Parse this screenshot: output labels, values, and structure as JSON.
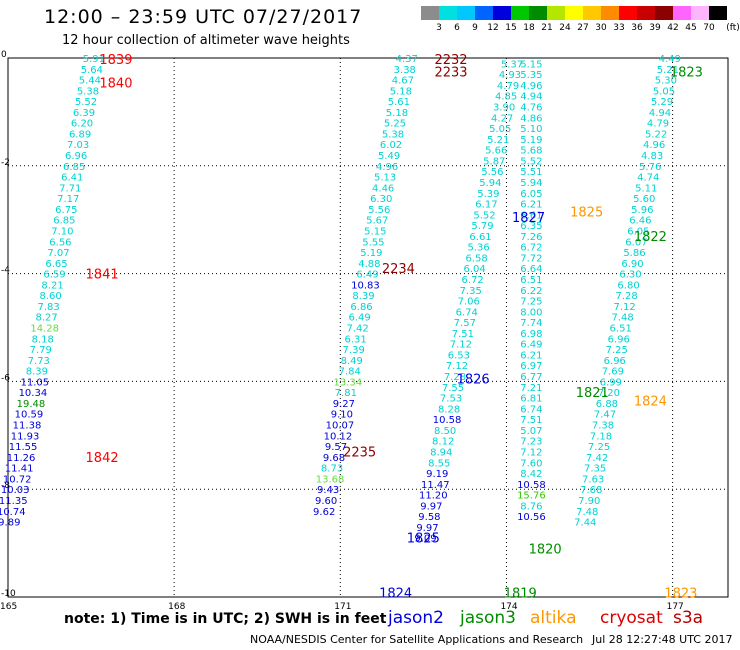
{
  "title": "12:00 – 23:59 UTC 07/27/2017",
  "subtitle": "12 hour collection of altimeter wave heights",
  "colorbar": {
    "unit": "(ft)",
    "labels": [
      "3",
      "6",
      "9",
      "12",
      "15",
      "18",
      "21",
      "24",
      "27",
      "30",
      "33",
      "36",
      "39",
      "42",
      "45",
      "70"
    ],
    "colors": [
      "#8c8c8c",
      "#00e0e0",
      "#00c8ff",
      "#0064ff",
      "#0000dc",
      "#00c800",
      "#008c00",
      "#b4e600",
      "#ffff00",
      "#ffc800",
      "#ff8c00",
      "#ff0000",
      "#c80000",
      "#8c0000",
      "#ff64ff",
      "#ffb4ff",
      "#000000"
    ]
  },
  "note": "note:  1) Time is in UTC;  2) SWH is in feet",
  "legend": [
    {
      "label": "jason2",
      "color": "#0000dc"
    },
    {
      "label": "jason3",
      "color": "#008c00"
    },
    {
      "label": "altika",
      "color": "#ff9600"
    },
    {
      "label": "cryosat",
      "color": "#dc0000"
    },
    {
      "label": "s3a",
      "color": "#b40000"
    }
  ],
  "footer": "NOAA/NESDIS Center for Satellite Applications and Research",
  "timestamp": "Jul 28 12:27:48 UTC 2017",
  "chart_data": {
    "type": "scatter",
    "xlim": [
      165,
      178
    ],
    "ylim": [
      -10,
      0
    ],
    "x_ticks": [
      "165",
      "168",
      "171",
      "174",
      "177"
    ],
    "y_ticks": [
      "0",
      "-2",
      "-4",
      "-6",
      "-8",
      "-10"
    ],
    "grid": true,
    "time_labels": [
      {
        "text": "1839",
        "color": "#ff0000",
        "x": 166.65,
        "y": -0.02
      },
      {
        "text": "1840",
        "color": "#ff0000",
        "x": 166.65,
        "y": -0.45
      },
      {
        "text": "1841",
        "color": "#ff0000",
        "x": 166.4,
        "y": -4.0
      },
      {
        "text": "1842",
        "color": "#ff0000",
        "x": 166.4,
        "y": -7.4
      },
      {
        "text": "2232",
        "color": "#8c0000",
        "x": 172.7,
        "y": -0.02
      },
      {
        "text": "2233",
        "color": "#8c0000",
        "x": 172.7,
        "y": -0.25
      },
      {
        "text": "2234",
        "color": "#8c0000",
        "x": 171.75,
        "y": -3.9
      },
      {
        "text": "2235",
        "color": "#8c0000",
        "x": 171.05,
        "y": -7.3
      },
      {
        "text": "1823",
        "color": "#008c00",
        "x": 176.95,
        "y": -0.25
      },
      {
        "text": "1822",
        "color": "#008c00",
        "x": 176.3,
        "y": -3.3
      },
      {
        "text": "1821",
        "color": "#008c00",
        "x": 175.25,
        "y": -6.2
      },
      {
        "text": "1820",
        "color": "#008c00",
        "x": 174.4,
        "y": -9.1
      },
      {
        "text": "1819",
        "color": "#008c00",
        "x": 173.95,
        "y": -9.92
      },
      {
        "text": "1827",
        "color": "#0000dc",
        "x": 174.1,
        "y": -2.95
      },
      {
        "text": "1826",
        "color": "#0000dc",
        "x": 173.1,
        "y": -5.95
      },
      {
        "text": "1825",
        "color": "#0000dc",
        "x": 172.2,
        "y": -8.9
      },
      {
        "text": "1824",
        "color": "#0000dc",
        "x": 171.7,
        "y": -9.92
      },
      {
        "text": "1825",
        "color": "#ff9600",
        "x": 175.15,
        "y": -2.85
      },
      {
        "text": "1824",
        "color": "#ff9600",
        "x": 176.3,
        "y": -6.35
      },
      {
        "text": "1823",
        "color": "#ff9600",
        "x": 176.85,
        "y": -9.92
      }
    ],
    "series": [
      {
        "name": "cryosat pass 1839-1842",
        "x0": 166.55,
        "y0": 0.0,
        "dx": -0.0355,
        "dy": -0.2,
        "values": [
          "5.91",
          "5.64",
          "5.44",
          "5.38",
          "5.52",
          "6.39",
          "6.20",
          "6.89",
          "7.03",
          "6.96",
          "6.85",
          "6.41",
          "7.71",
          "7.17",
          "6.75",
          "6.85",
          "7.10",
          "6.56",
          "7.07",
          "6.65",
          "6.59",
          "8.21",
          "8.60",
          "7.83",
          "8.27",
          "14.28",
          "8.18",
          "7.79",
          "7.73",
          "8.39",
          "11.05",
          "10.34",
          "19.48",
          "10.59",
          "11.38",
          "11.93",
          "11.55",
          "11.26",
          "11.41",
          "10.72",
          "10.03",
          "11.35",
          "10.74",
          "9.89"
        ]
      },
      {
        "name": "s3a pass 2232-2235",
        "x0": 172.2,
        "y0": 0.0,
        "dx": -0.0355,
        "dy": -0.2,
        "values": [
          "4.37",
          "3.38",
          "4.67",
          "5.18",
          "5.61",
          "5.18",
          "5.25",
          "5.38",
          "6.02",
          "5.49",
          "4.96",
          "5.13",
          "4.46",
          "6.30",
          "5.56",
          "5.67",
          "5.15",
          "5.55",
          "5.19",
          "4.88",
          "6.49",
          "10.83",
          "8.39",
          "6.86",
          "6.49",
          "7.42",
          "6.31",
          "7.39",
          "8.49",
          "7.84",
          "13.34",
          "7.81",
          "9.27",
          "9.10",
          "10.07",
          "10.12",
          "9.57",
          "9.68",
          "8.73",
          "13.68",
          "9.43",
          "9.60",
          "9.62"
        ]
      },
      {
        "name": "jason2 pass 1824-1827",
        "x0": 174.1,
        "y0": -0.1,
        "dx": -0.0355,
        "dy": -0.2,
        "values": [
          "5.37",
          "4.93",
          "4.79",
          "4.85",
          "3.90",
          "4.27",
          "5.05",
          "5.21",
          "5.66",
          "5.87",
          "5.56",
          "5.94",
          "5.39",
          "6.17",
          "5.52",
          "5.79",
          "6.61",
          "5.36",
          "6.58",
          "6.04",
          "6.72",
          "7.35",
          "7.06",
          "6.74",
          "7.57",
          "7.51",
          "7.12",
          "6.53",
          "7.12",
          "7.28",
          "7.55",
          "7.53",
          "8.28",
          "10.58",
          "8.50",
          "8.12",
          "8.94",
          "8.55",
          "9.19",
          "11.47",
          "11.20",
          "9.97",
          "9.58",
          "9.97",
          "9.09"
        ]
      },
      {
        "name": "jason3 pass 1819-1823",
        "x0": 176.95,
        "y0": 0.0,
        "dx": -0.0355,
        "dy": -0.2,
        "values": [
          "4.49",
          "5.21",
          "5.30",
          "5.05",
          "5.29",
          "4.94",
          "4.79",
          "5.22",
          "4.96",
          "4.83",
          "5.76",
          "4.74",
          "5.11",
          "5.60",
          "5.96",
          "6.46",
          "6.05",
          "6.07",
          "5.86",
          "6.90",
          "6.30",
          "6.80",
          "7.28",
          "7.12",
          "7.48",
          "6.51",
          "6.96",
          "7.25",
          "6.96",
          "7.69",
          "6.99",
          "7.20",
          "6.88",
          "7.47",
          "7.38",
          "7.18",
          "7.25",
          "7.42",
          "7.35",
          "7.63",
          "7.68",
          "7.90",
          "7.48",
          "7.44"
        ]
      },
      {
        "name": "altika pass 1823-1825",
        "x0": 174.45,
        "y0": -0.1,
        "dx": 0.0,
        "dy": -0.2,
        "values": [
          "5.15",
          "5.35",
          "4.96",
          "4.94",
          "4.76",
          "4.86",
          "5.10",
          "5.19",
          "5.68",
          "5.52",
          "5.51",
          "5.94",
          "6.05",
          "6.21",
          "6.61",
          "6.35",
          "7.26",
          "6.72",
          "7.72",
          "6.64",
          "6.51",
          "6.22",
          "7.25",
          "8.00",
          "7.74",
          "6.98",
          "6.49",
          "6.21",
          "6.97",
          "6.77",
          "7.21",
          "6.81",
          "6.74",
          "7.51",
          "5.07",
          "7.23",
          "7.12",
          "7.60",
          "8.42",
          "10.58",
          "15.76",
          "8.76",
          "10.56"
        ]
      }
    ]
  }
}
